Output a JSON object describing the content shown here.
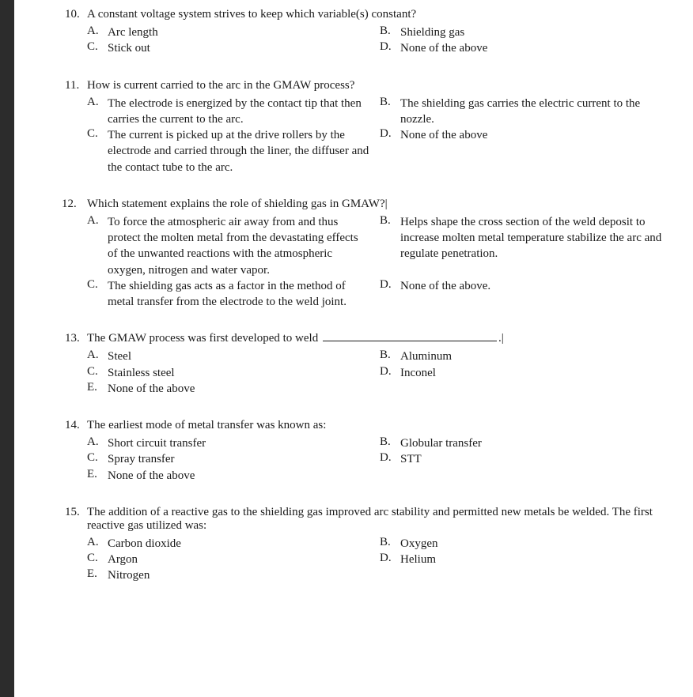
{
  "font_family": "Georgia, serif",
  "text_color": "#1a1a1a",
  "background_color": "#ffffff",
  "sidebar_color": "#2c2c2c",
  "base_fontsize": 15,
  "questions": [
    {
      "num": "10.",
      "stem": "A constant voltage system strives to keep which variable(s) constant?",
      "options": [
        {
          "letter": "A.",
          "text": "Arc length"
        },
        {
          "letter": "B.",
          "text": "Shielding gas"
        },
        {
          "letter": "C.",
          "text": "Stick out"
        },
        {
          "letter": "D.",
          "text": "None of the above"
        }
      ]
    },
    {
      "num": "11.",
      "stem": "How is current carried to the arc in the GMAW process?",
      "options": [
        {
          "letter": "A.",
          "text": "The electrode is energized by the contact tip that then carries the current to the arc."
        },
        {
          "letter": "B.",
          "text": "The shielding gas carries the electric current to the nozzle."
        },
        {
          "letter": "C.",
          "text": "The current is picked up at the drive rollers by the electrode and carried through the liner, the diffuser and the contact tube to the arc."
        },
        {
          "letter": "D.",
          "text": "None of the above"
        }
      ]
    },
    {
      "num": "12.",
      "stem": "Which statement explains the role of shielding gas in GMAW?|",
      "options": [
        {
          "letter": "A.",
          "text": "To force the atmospheric air away from and thus protect the molten metal from the devastating effects of the unwanted reactions with the atmospheric oxygen, nitrogen and water vapor."
        },
        {
          "letter": "B.",
          "text": "Helps shape the cross section of the weld deposit to increase molten metal temperature stabilize the arc and regulate penetration."
        },
        {
          "letter": "C.",
          "text": "The shielding gas acts as a factor in the method of metal transfer from the electrode to the weld joint."
        },
        {
          "letter": "D.",
          "text": "None of the above."
        }
      ]
    },
    {
      "num": "13.",
      "stem_pre": "The GMAW process was first developed to weld ",
      "stem_post": ".|",
      "has_blank": true,
      "options": [
        {
          "letter": "A.",
          "text": "Steel"
        },
        {
          "letter": "B.",
          "text": "Aluminum"
        },
        {
          "letter": "C.",
          "text": "Stainless steel"
        },
        {
          "letter": "D.",
          "text": "Inconel"
        },
        {
          "letter": "E.",
          "text": "None of the above"
        }
      ]
    },
    {
      "num": "14.",
      "stem": "The earliest mode of metal transfer was known as:",
      "options": [
        {
          "letter": "A.",
          "text": "Short circuit transfer"
        },
        {
          "letter": "B.",
          "text": "Globular transfer"
        },
        {
          "letter": "C.",
          "text": "Spray transfer"
        },
        {
          "letter": "D.",
          "text": "STT"
        },
        {
          "letter": "E.",
          "text": "None of the above"
        }
      ]
    },
    {
      "num": "15.",
      "stem": "The addition of a reactive gas to the shielding gas improved arc stability and permitted new metals be welded. The first reactive gas utilized was:",
      "options": [
        {
          "letter": "A.",
          "text": "Carbon dioxide"
        },
        {
          "letter": "B.",
          "text": "Oxygen"
        },
        {
          "letter": "C.",
          "text": "Argon"
        },
        {
          "letter": "D.",
          "text": "Helium"
        },
        {
          "letter": "E.",
          "text": "Nitrogen"
        }
      ]
    }
  ]
}
